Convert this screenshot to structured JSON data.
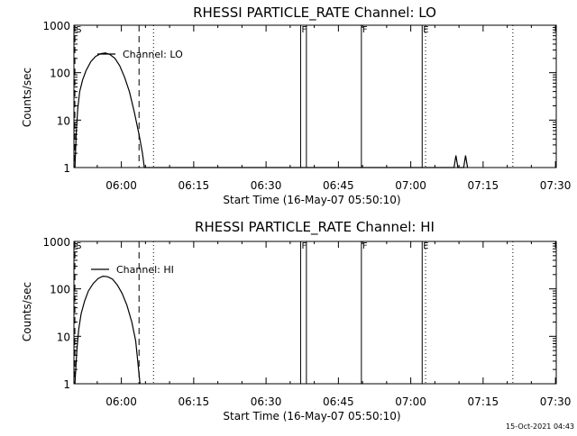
{
  "footer_timestamp": "15-Oct-2021 04:43",
  "chart_data": [
    {
      "type": "line",
      "title": "RHESSI PARTICLE_RATE Channel: LO",
      "xlabel": "Start Time (16-May-07 05:50:10)",
      "ylabel": "Counts/sec",
      "y_scale": "log",
      "ylim": [
        1,
        1000
      ],
      "xlim_minutes": [
        0,
        100
      ],
      "x_ticks": [
        "06:00",
        "06:15",
        "06:30",
        "06:45",
        "07:00",
        "07:15",
        "07:30"
      ],
      "y_ticks": [
        "1",
        "10",
        "100",
        "1000"
      ],
      "legend": "Channel: LO",
      "series": [
        {
          "name": "Channel: LO",
          "points": [
            [
              0.2,
              1
            ],
            [
              0.5,
              6
            ],
            [
              0.8,
              18
            ],
            [
              1.2,
              40
            ],
            [
              1.8,
              70
            ],
            [
              2.5,
              110
            ],
            [
              3.5,
              170
            ],
            [
              4.5,
              220
            ],
            [
              5.5,
              250
            ],
            [
              6.5,
              260
            ],
            [
              7.5,
              240
            ],
            [
              8.5,
              200
            ],
            [
              9.5,
              140
            ],
            [
              10.5,
              80
            ],
            [
              11.5,
              40
            ],
            [
              12.5,
              15
            ],
            [
              13.5,
              5
            ],
            [
              14.2,
              2
            ],
            [
              14.6,
              1
            ],
            [
              78.8,
              1
            ],
            [
              79.2,
              1.8
            ],
            [
              79.6,
              1
            ],
            [
              80.8,
              1
            ],
            [
              81.2,
              1.8
            ],
            [
              81.6,
              1
            ]
          ]
        }
      ],
      "markers": [
        {
          "label": "S",
          "minute": 0.2,
          "style": "dashed"
        },
        {
          "label": "",
          "minute": 13.5,
          "style": "dashed"
        },
        {
          "label": "",
          "minute": 16.5,
          "style": "dotted"
        },
        {
          "label": "F",
          "minute": 47.0,
          "style": "solid"
        },
        {
          "label": "",
          "minute": 48.2,
          "style": "solid"
        },
        {
          "label": "F",
          "minute": 59.6,
          "style": "solid"
        },
        {
          "label": "E",
          "minute": 72.2,
          "style": "solid"
        },
        {
          "label": "",
          "minute": 72.9,
          "style": "dotted"
        },
        {
          "label": "",
          "minute": 91.0,
          "style": "dotted"
        }
      ]
    },
    {
      "type": "line",
      "title": "RHESSI PARTICLE_RATE Channel: HI",
      "xlabel": "Start Time (16-May-07 05:50:10)",
      "ylabel": "Counts/sec",
      "y_scale": "log",
      "ylim": [
        1,
        1000
      ],
      "xlim_minutes": [
        0,
        100
      ],
      "x_ticks": [
        "06:00",
        "06:15",
        "06:30",
        "06:45",
        "07:00",
        "07:15",
        "07:30"
      ],
      "y_ticks": [
        "1",
        "10",
        "100",
        "1000"
      ],
      "legend": "Channel: HI",
      "series": [
        {
          "name": "Channel: HI",
          "points": [
            [
              0.2,
              1
            ],
            [
              0.6,
              5
            ],
            [
              1.0,
              14
            ],
            [
              1.5,
              30
            ],
            [
              2.2,
              55
            ],
            [
              3.0,
              90
            ],
            [
              4.0,
              130
            ],
            [
              5.0,
              165
            ],
            [
              6.0,
              185
            ],
            [
              7.0,
              180
            ],
            [
              8.0,
              160
            ],
            [
              9.0,
              120
            ],
            [
              10.0,
              80
            ],
            [
              11.0,
              45
            ],
            [
              12.0,
              20
            ],
            [
              12.8,
              8
            ],
            [
              13.4,
              2
            ],
            [
              13.7,
              1
            ]
          ]
        }
      ],
      "markers": [
        {
          "label": "S",
          "minute": 0.2,
          "style": "dashed"
        },
        {
          "label": "",
          "minute": 13.5,
          "style": "dashed"
        },
        {
          "label": "",
          "minute": 16.5,
          "style": "dotted"
        },
        {
          "label": "F",
          "minute": 47.0,
          "style": "solid"
        },
        {
          "label": "",
          "minute": 48.2,
          "style": "solid"
        },
        {
          "label": "F",
          "minute": 59.6,
          "style": "solid"
        },
        {
          "label": "E",
          "minute": 72.2,
          "style": "solid"
        },
        {
          "label": "",
          "minute": 72.9,
          "style": "dotted"
        },
        {
          "label": "",
          "minute": 91.0,
          "style": "dotted"
        }
      ]
    }
  ]
}
